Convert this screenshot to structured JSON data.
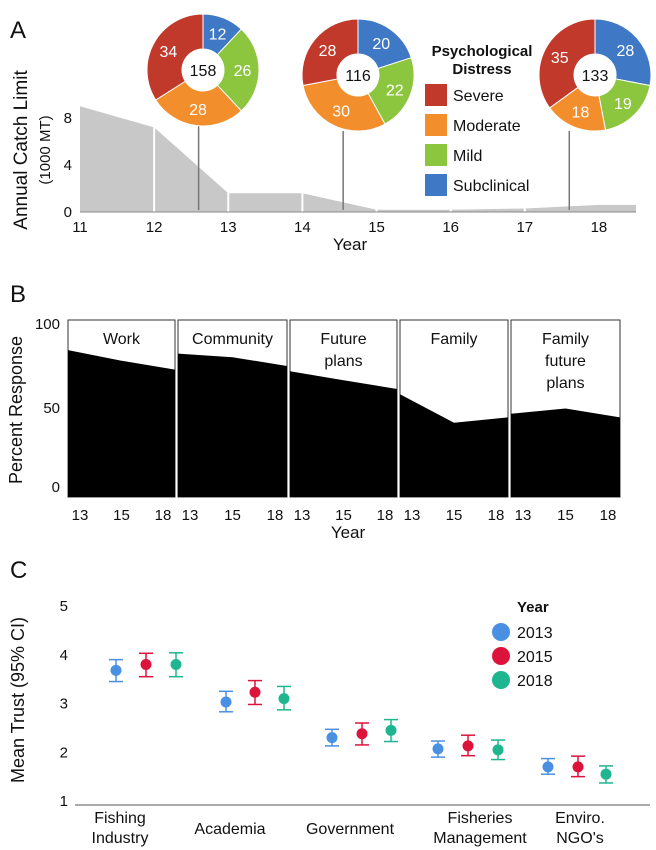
{
  "chart_data": [
    {
      "panel": "A",
      "type": "area",
      "xlabel": "Year",
      "ylabel": "Annual Catch Limit",
      "ylabel_units": "(1000 MT)",
      "x_ticks": [
        "11",
        "12",
        "13",
        "14",
        "15",
        "16",
        "17",
        "18"
      ],
      "y_ticks": [
        "0",
        "4",
        "8"
      ],
      "ylim": [
        0,
        9.5
      ],
      "series_values": [
        {
          "x": 11,
          "y": 9.0
        },
        {
          "x": 12,
          "y": 7.2
        },
        {
          "x": 13,
          "y": 1.6
        },
        {
          "x": 14,
          "y": 1.6
        },
        {
          "x": 15,
          "y": 0.2
        },
        {
          "x": 16,
          "y": 0.2
        },
        {
          "x": 17,
          "y": 0.3
        },
        {
          "x": 18,
          "y": 0.6
        }
      ],
      "legend_title": "Psychological Distress",
      "legend": [
        {
          "label": "Severe",
          "color": "#c0392b"
        },
        {
          "label": "Moderate",
          "color": "#f28e2b"
        },
        {
          "label": "Mild",
          "color": "#8cc63f"
        },
        {
          "label": "Subclinical",
          "color": "#3f78c4"
        }
      ],
      "donuts": [
        {
          "total": "158",
          "year": 12.6,
          "values": {
            "subclinical": 12,
            "mild": 26,
            "moderate": 28,
            "severe": 34
          }
        },
        {
          "total": "116",
          "year": 14.55,
          "values": {
            "subclinical": 20,
            "mild": 22,
            "moderate": 30,
            "severe": 28
          }
        },
        {
          "total": "133",
          "year": 17.6,
          "values": {
            "subclinical": 28,
            "mild": 19,
            "moderate": 18,
            "severe": 35
          }
        }
      ]
    },
    {
      "panel": "B",
      "type": "area",
      "xlabel": "Year",
      "ylabel": "Percent Response",
      "y_ticks": [
        "0",
        "50",
        "100"
      ],
      "ylim": [
        0,
        100
      ],
      "x_ticks": [
        "13",
        "15",
        "18"
      ],
      "facets": [
        {
          "label_lines": [
            "Work"
          ],
          "values": [
            83,
            77,
            72
          ]
        },
        {
          "label_lines": [
            "Community"
          ],
          "values": [
            81,
            79,
            74
          ]
        },
        {
          "label_lines": [
            "Future",
            "plans"
          ],
          "values": [
            71,
            66,
            61
          ]
        },
        {
          "label_lines": [
            "Family"
          ],
          "values": [
            58,
            42,
            45
          ]
        },
        {
          "label_lines": [
            "Family",
            "future",
            "plans"
          ],
          "values": [
            47,
            50,
            45
          ]
        }
      ]
    },
    {
      "panel": "C",
      "type": "scatter",
      "ylabel": "Mean Trust (95% CI)",
      "y_ticks": [
        "1",
        "2",
        "3",
        "4",
        "5"
      ],
      "ylim": [
        1,
        5.5
      ],
      "legend_title": "Year",
      "series": [
        {
          "name": "2013",
          "color": "#4a90e2"
        },
        {
          "name": "2015",
          "color": "#dc143c"
        },
        {
          "name": "2018",
          "color": "#1fb58f"
        }
      ],
      "categories": [
        {
          "label_lines": [
            "Fishing",
            "Industry"
          ],
          "points": [
            {
              "mean": 3.68,
              "lo": 3.45,
              "hi": 3.9
            },
            {
              "mean": 3.8,
              "lo": 3.55,
              "hi": 4.03
            },
            {
              "mean": 3.8,
              "lo": 3.55,
              "hi": 4.04
            }
          ]
        },
        {
          "label_lines": [
            "Academia"
          ],
          "points": [
            {
              "mean": 3.03,
              "lo": 2.83,
              "hi": 3.25
            },
            {
              "mean": 3.23,
              "lo": 2.98,
              "hi": 3.47
            },
            {
              "mean": 3.1,
              "lo": 2.87,
              "hi": 3.35
            }
          ]
        },
        {
          "label_lines": [
            "Government"
          ],
          "points": [
            {
              "mean": 2.3,
              "lo": 2.13,
              "hi": 2.47
            },
            {
              "mean": 2.38,
              "lo": 2.15,
              "hi": 2.6
            },
            {
              "mean": 2.45,
              "lo": 2.22,
              "hi": 2.67
            }
          ]
        },
        {
          "label_lines": [
            "Fisheries",
            "Management"
          ],
          "points": [
            {
              "mean": 2.07,
              "lo": 1.9,
              "hi": 2.23
            },
            {
              "mean": 2.13,
              "lo": 1.93,
              "hi": 2.35
            },
            {
              "mean": 2.05,
              "lo": 1.85,
              "hi": 2.25
            }
          ]
        },
        {
          "label_lines": [
            "Enviro.",
            "NGO's"
          ],
          "points": [
            {
              "mean": 1.7,
              "lo": 1.55,
              "hi": 1.87
            },
            {
              "mean": 1.7,
              "lo": 1.5,
              "hi": 1.92
            },
            {
              "mean": 1.55,
              "lo": 1.37,
              "hi": 1.72
            }
          ]
        }
      ]
    }
  ],
  "panel_labels": {
    "a": "A",
    "b": "B",
    "c": "C"
  }
}
